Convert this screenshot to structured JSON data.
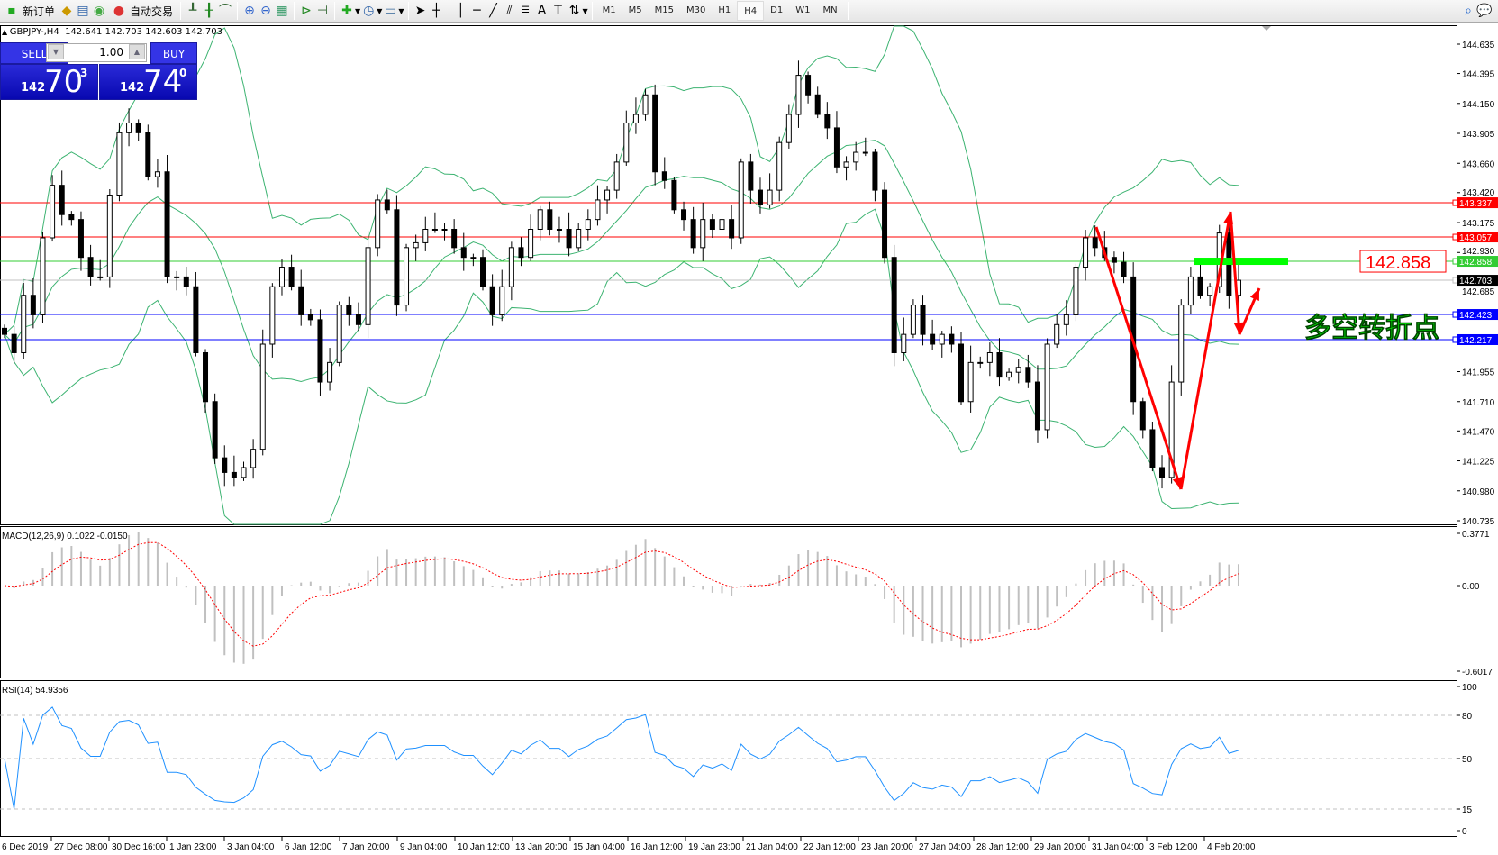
{
  "toolbar": {
    "new_order": "新订单",
    "auto_trading": "自动交易",
    "icons": [
      "new-order-icon",
      "history-icon",
      "market-watch-icon",
      "signals-icon",
      "auto-trading-icon",
      "bar-chart-icon",
      "candlestick-icon",
      "line-chart-icon",
      "zoom-in-icon",
      "zoom-out-icon",
      "tile-windows-icon",
      "autoscroll-icon",
      "chart-shift-icon",
      "indicators-icon",
      "periods-icon",
      "templates-icon",
      "cursor-icon",
      "crosshair-icon",
      "vertical-line-icon",
      "horizontal-line-icon",
      "trendline-icon",
      "equidistant-channel-icon",
      "fibonacci-icon",
      "text-icon",
      "text-label-icon",
      "arrows-icon"
    ],
    "timeframes": [
      "M1",
      "M5",
      "M15",
      "M30",
      "H1",
      "H4",
      "D1",
      "W1",
      "MN"
    ],
    "active_timeframe": "H4"
  },
  "header": {
    "symbol": "GBPJPY-,H4",
    "ohlc": "142.641 142.703 142.603 142.703"
  },
  "one_click": {
    "sell": "SELL",
    "buy": "BUY",
    "lot": "1.00",
    "bid_big": "142",
    "bid_main": "70",
    "bid_sup": "3",
    "ask_big": "142",
    "ask_main": "74",
    "ask_sup": "0"
  },
  "price_axis": {
    "ticks": [
      "144.635",
      "144.395",
      "144.150",
      "143.905",
      "143.660",
      "143.420",
      "143.175",
      "142.930",
      "142.685",
      "141.955",
      "141.710",
      "141.470",
      "141.225",
      "140.980",
      "140.735"
    ]
  },
  "levels": [
    {
      "price": 143.337,
      "label": "143.337",
      "color": "#ff0000"
    },
    {
      "price": 143.057,
      "label": "143.057",
      "color": "#ff0000"
    },
    {
      "price": 142.858,
      "label": "142.858",
      "color": "#33cc33"
    },
    {
      "price": 142.703,
      "label": "142.703",
      "color": "#000000"
    },
    {
      "price": 142.423,
      "label": "142.423",
      "color": "#0000ff"
    },
    {
      "price": 142.217,
      "label": "142.217",
      "color": "#0000ff"
    }
  ],
  "annotations": {
    "price_label": "142.858",
    "text": "多空转折点",
    "text_color": "#00ff00",
    "arrow_color": "#ff0000"
  },
  "macd": {
    "title": "MACD(12,26,9) 0.1022 -0.0150",
    "axis": [
      "0.3771",
      "0.00",
      "-0.6017"
    ]
  },
  "rsi": {
    "title": "RSI(14) 54.9356",
    "axis": [
      "100",
      "80",
      "50",
      "15",
      "0"
    ]
  },
  "time_axis": [
    "6 Dec 2019",
    "27 Dec 08:00",
    "30 Dec 16:00",
    "1 Jan 23:00",
    "3 Jan 04:00",
    "6 Jan 12:00",
    "7 Jan 20:00",
    "9 Jan 04:00",
    "10 Jan 12:00",
    "13 Jan 20:00",
    "15 Jan 04:00",
    "16 Jan 12:00",
    "19 Jan 23:00",
    "21 Jan 04:00",
    "22 Jan 12:00",
    "23 Jan 20:00",
    "27 Jan 04:00",
    "28 Jan 12:00",
    "29 Jan 20:00",
    "31 Jan 04:00",
    "3 Feb 12:00",
    "4 Feb 20:00"
  ],
  "chart_data": {
    "type": "candlestick",
    "symbol": "GBPJPY",
    "timeframe": "H4",
    "ylim": [
      140.735,
      144.635
    ],
    "closes": [
      142.26,
      142.11,
      142.58,
      142.42,
      143.05,
      143.48,
      143.24,
      143.2,
      142.89,
      142.73,
      142.73,
      143.4,
      143.91,
      143.99,
      143.91,
      143.55,
      143.59,
      142.73,
      142.73,
      142.65,
      142.11,
      141.71,
      141.25,
      141.13,
      141.09,
      141.17,
      141.32,
      142.18,
      142.65,
      142.81,
      142.65,
      142.42,
      142.38,
      141.87,
      142.03,
      142.5,
      142.42,
      142.34,
      142.97,
      143.36,
      143.28,
      142.5,
      142.97,
      143.01,
      143.12,
      143.12,
      143.12,
      142.97,
      142.89,
      142.89,
      142.65,
      142.42,
      142.65,
      142.97,
      142.89,
      143.12,
      143.28,
      143.12,
      143.12,
      142.97,
      143.12,
      143.2,
      143.36,
      143.44,
      143.67,
      143.99,
      144.06,
      144.22,
      143.59,
      143.52,
      143.28,
      143.2,
      142.97,
      143.2,
      143.12,
      143.2,
      143.05,
      143.67,
      143.44,
      143.32,
      143.44,
      143.83,
      144.06,
      144.38,
      144.22,
      144.06,
      143.95,
      143.63,
      143.67,
      143.75,
      143.75,
      143.44,
      142.89,
      142.11,
      142.26,
      142.5,
      142.26,
      142.18,
      142.26,
      142.18,
      141.71,
      142.03,
      142.03,
      142.11,
      141.91,
      141.95,
      141.99,
      141.87,
      141.48,
      142.18,
      142.34,
      142.42,
      142.81,
      143.05,
      142.97,
      142.89,
      142.85,
      142.73,
      141.71,
      141.48,
      141.17,
      141.09,
      141.87,
      142.5,
      142.73,
      142.58,
      142.65,
      143.09,
      142.58,
      142.703
    ]
  }
}
